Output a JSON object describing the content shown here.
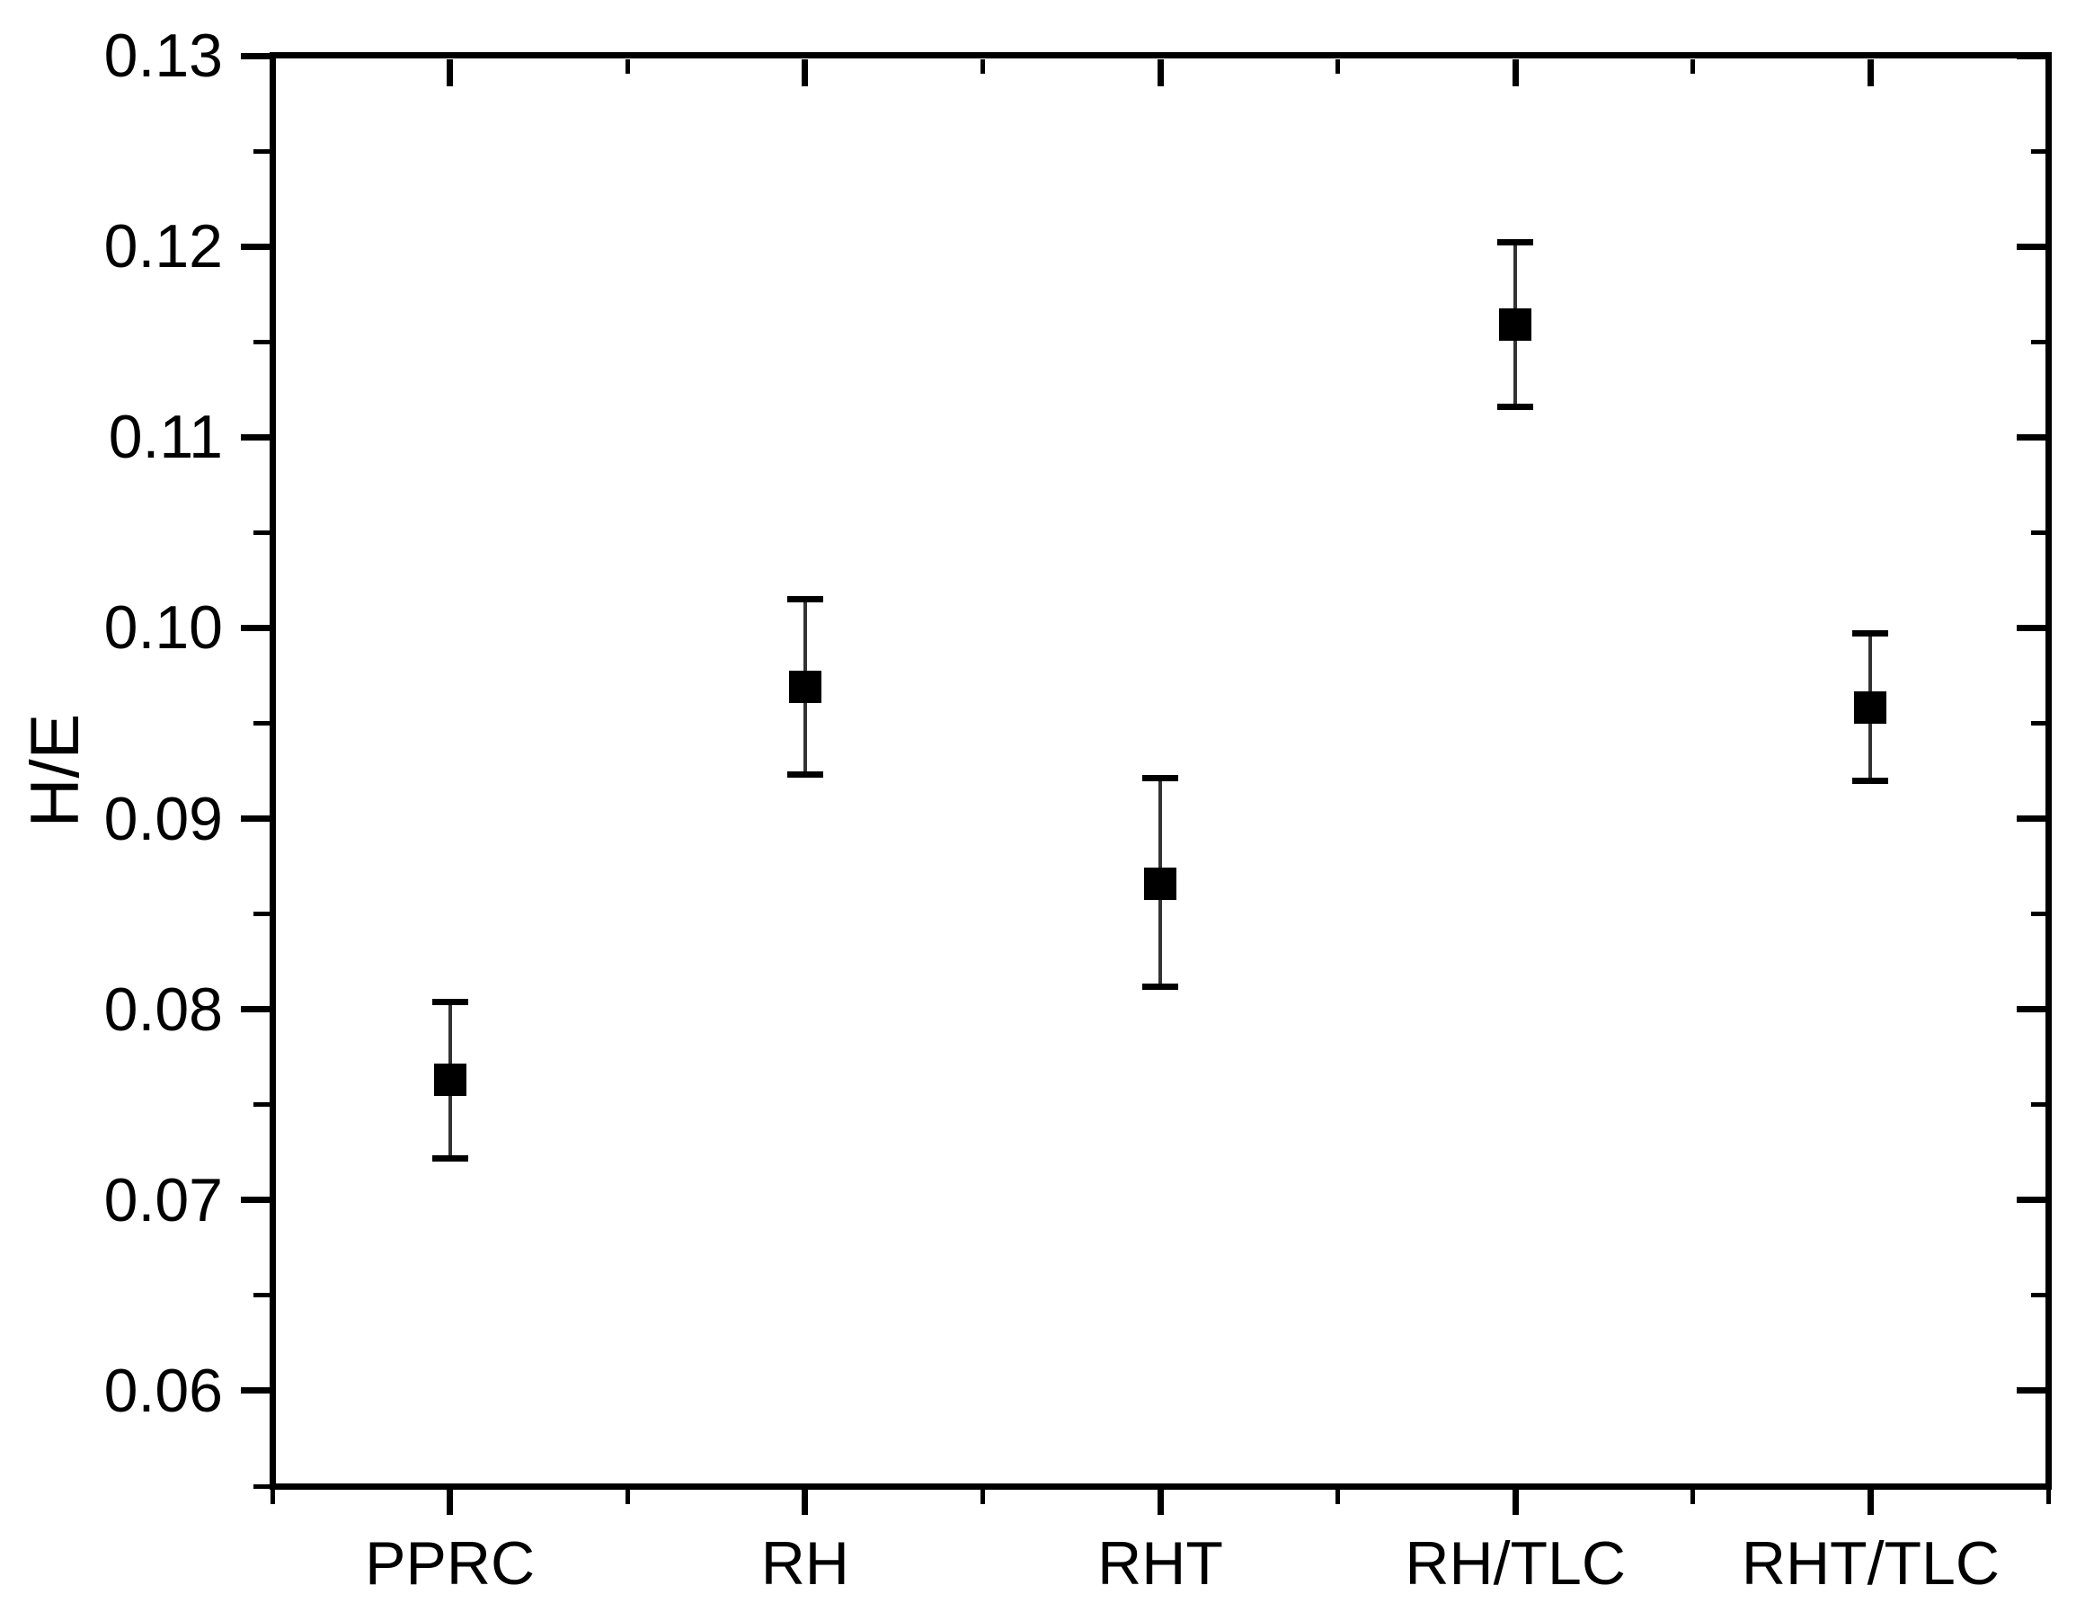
{
  "figure": {
    "background": "#ffffff"
  },
  "chart_data": {
    "type": "scatter",
    "title": "",
    "xlabel": "",
    "ylabel": "H/E",
    "categories": [
      "PPRC",
      "RH",
      "RHT",
      "RH/TLC",
      "RHT/TLC"
    ],
    "series": [
      {
        "name": "H/E",
        "values": [
          0.0763,
          0.0969,
          0.0866,
          0.1159,
          0.0958
        ],
        "err_plus": [
          0.0041,
          0.0046,
          0.0055,
          0.0043,
          0.0039
        ],
        "err_minus": [
          0.0041,
          0.0046,
          0.0054,
          0.0043,
          0.0038
        ]
      }
    ],
    "ylim": [
      0.055,
      0.13
    ],
    "yticks_major": [
      0.06,
      0.07,
      0.08,
      0.09,
      0.1,
      0.11,
      0.12,
      0.13
    ],
    "ytick_labels": [
      "0.06",
      "0.07",
      "0.08",
      "0.09",
      "0.10",
      "0.11",
      "0.12",
      "0.13"
    ],
    "yticks_minor": [
      0.055,
      0.065,
      0.075,
      0.085,
      0.095,
      0.105,
      0.115,
      0.125
    ],
    "marker": "filled-square",
    "error_bars": true,
    "grid": false,
    "legend": "none",
    "frame": true,
    "tick_style": "outward-left-bottom, inward-mirror-top-right"
  },
  "colors": {
    "axis": "#000000",
    "text": "#000000",
    "marker": "#000000",
    "errorbar_line": "#333333",
    "errorbar_cap": "#000000",
    "background": "#ffffff"
  }
}
